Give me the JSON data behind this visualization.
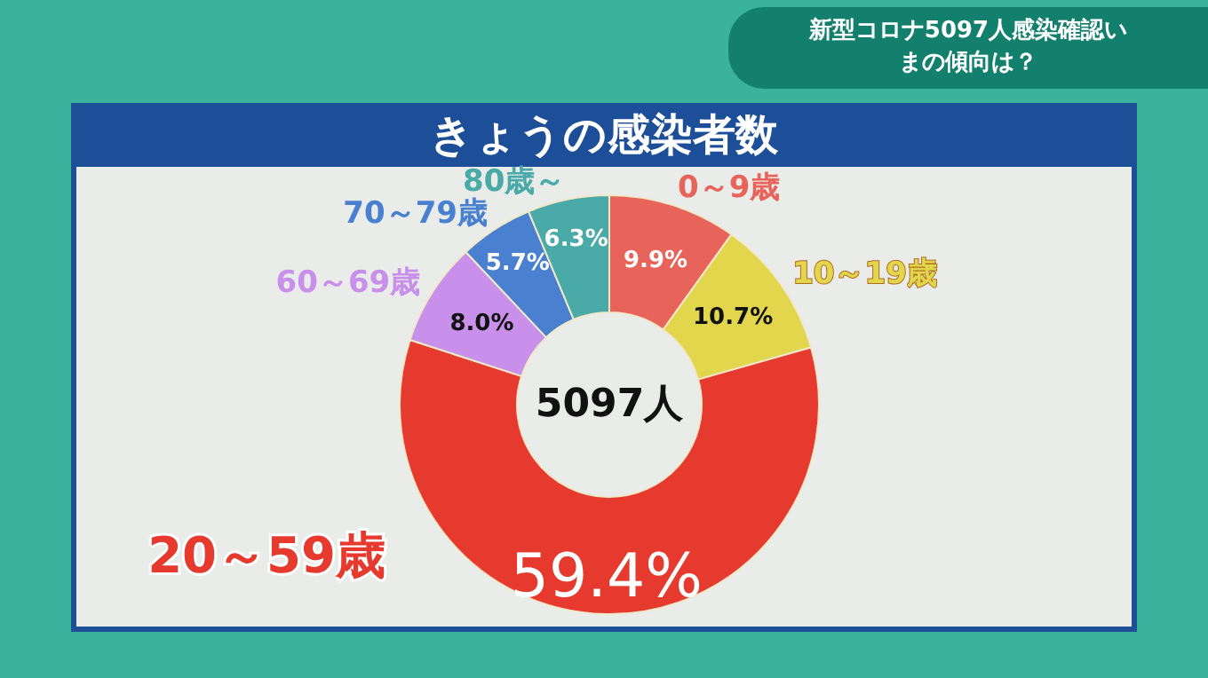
{
  "chart_data": {
    "type": "donut",
    "title": "きょうの感染者数",
    "subtitle": "新型コロナ5097人感染確認いまの傾向は？",
    "categories": [
      "0～9歳",
      "10～19歳",
      "20～59歳",
      "60～69歳",
      "70～79歳",
      "80歳～"
    ],
    "values": [
      9.9,
      10.7,
      59.4,
      8.0,
      5.7,
      6.3
    ],
    "value_labels": [
      "9.9%",
      "10.7%",
      "59.4%",
      "8.0%",
      "5.7%",
      "6.3%"
    ],
    "colors": [
      "#e8645a",
      "#e2d64c",
      "#e63a2e",
      "#c890ea",
      "#4a80d0",
      "#4aaaa8"
    ],
    "annotations": [
      "5097人"
    ],
    "legend": false
  }
}
